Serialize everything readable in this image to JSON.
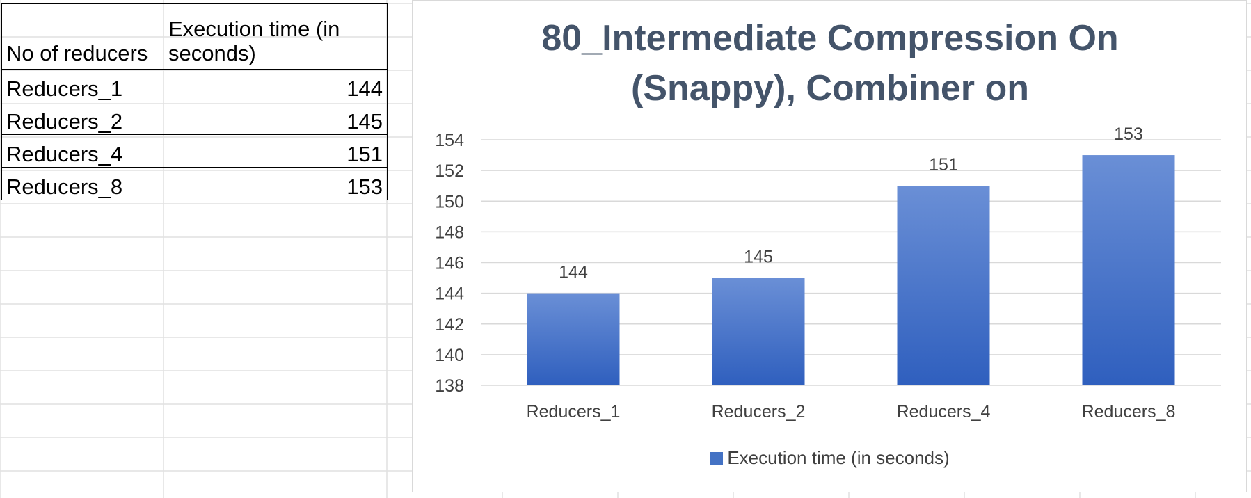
{
  "table": {
    "header": {
      "col1": "No of reducers",
      "col2": "Execution time (in seconds)"
    },
    "rows": [
      {
        "label": "Reducers_1",
        "value": "144"
      },
      {
        "label": "Reducers_2",
        "value": "145"
      },
      {
        "label": "Reducers_4",
        "value": "151"
      },
      {
        "label": "Reducers_8",
        "value": "153"
      }
    ]
  },
  "chart_data": {
    "type": "bar",
    "title": "80_Intermediate Compression On (Snappy), Combiner on",
    "categories": [
      "Reducers_1",
      "Reducers_2",
      "Reducers_4",
      "Reducers_8"
    ],
    "series": [
      {
        "name": "Execution time (in seconds)",
        "values": [
          144,
          145,
          151,
          153
        ]
      }
    ],
    "ylim": [
      138,
      154
    ],
    "yticks": [
      138,
      140,
      142,
      144,
      146,
      148,
      150,
      152,
      154
    ],
    "xlabel": "",
    "ylabel": "",
    "grid": true,
    "legend": "bottom",
    "data_labels": true,
    "colors": {
      "bar_top": "#6a8fd6",
      "bar_bottom": "#2f5fbe",
      "grid": "#d9d9d9",
      "axis_text": "#404040",
      "title": "#44546a"
    }
  }
}
